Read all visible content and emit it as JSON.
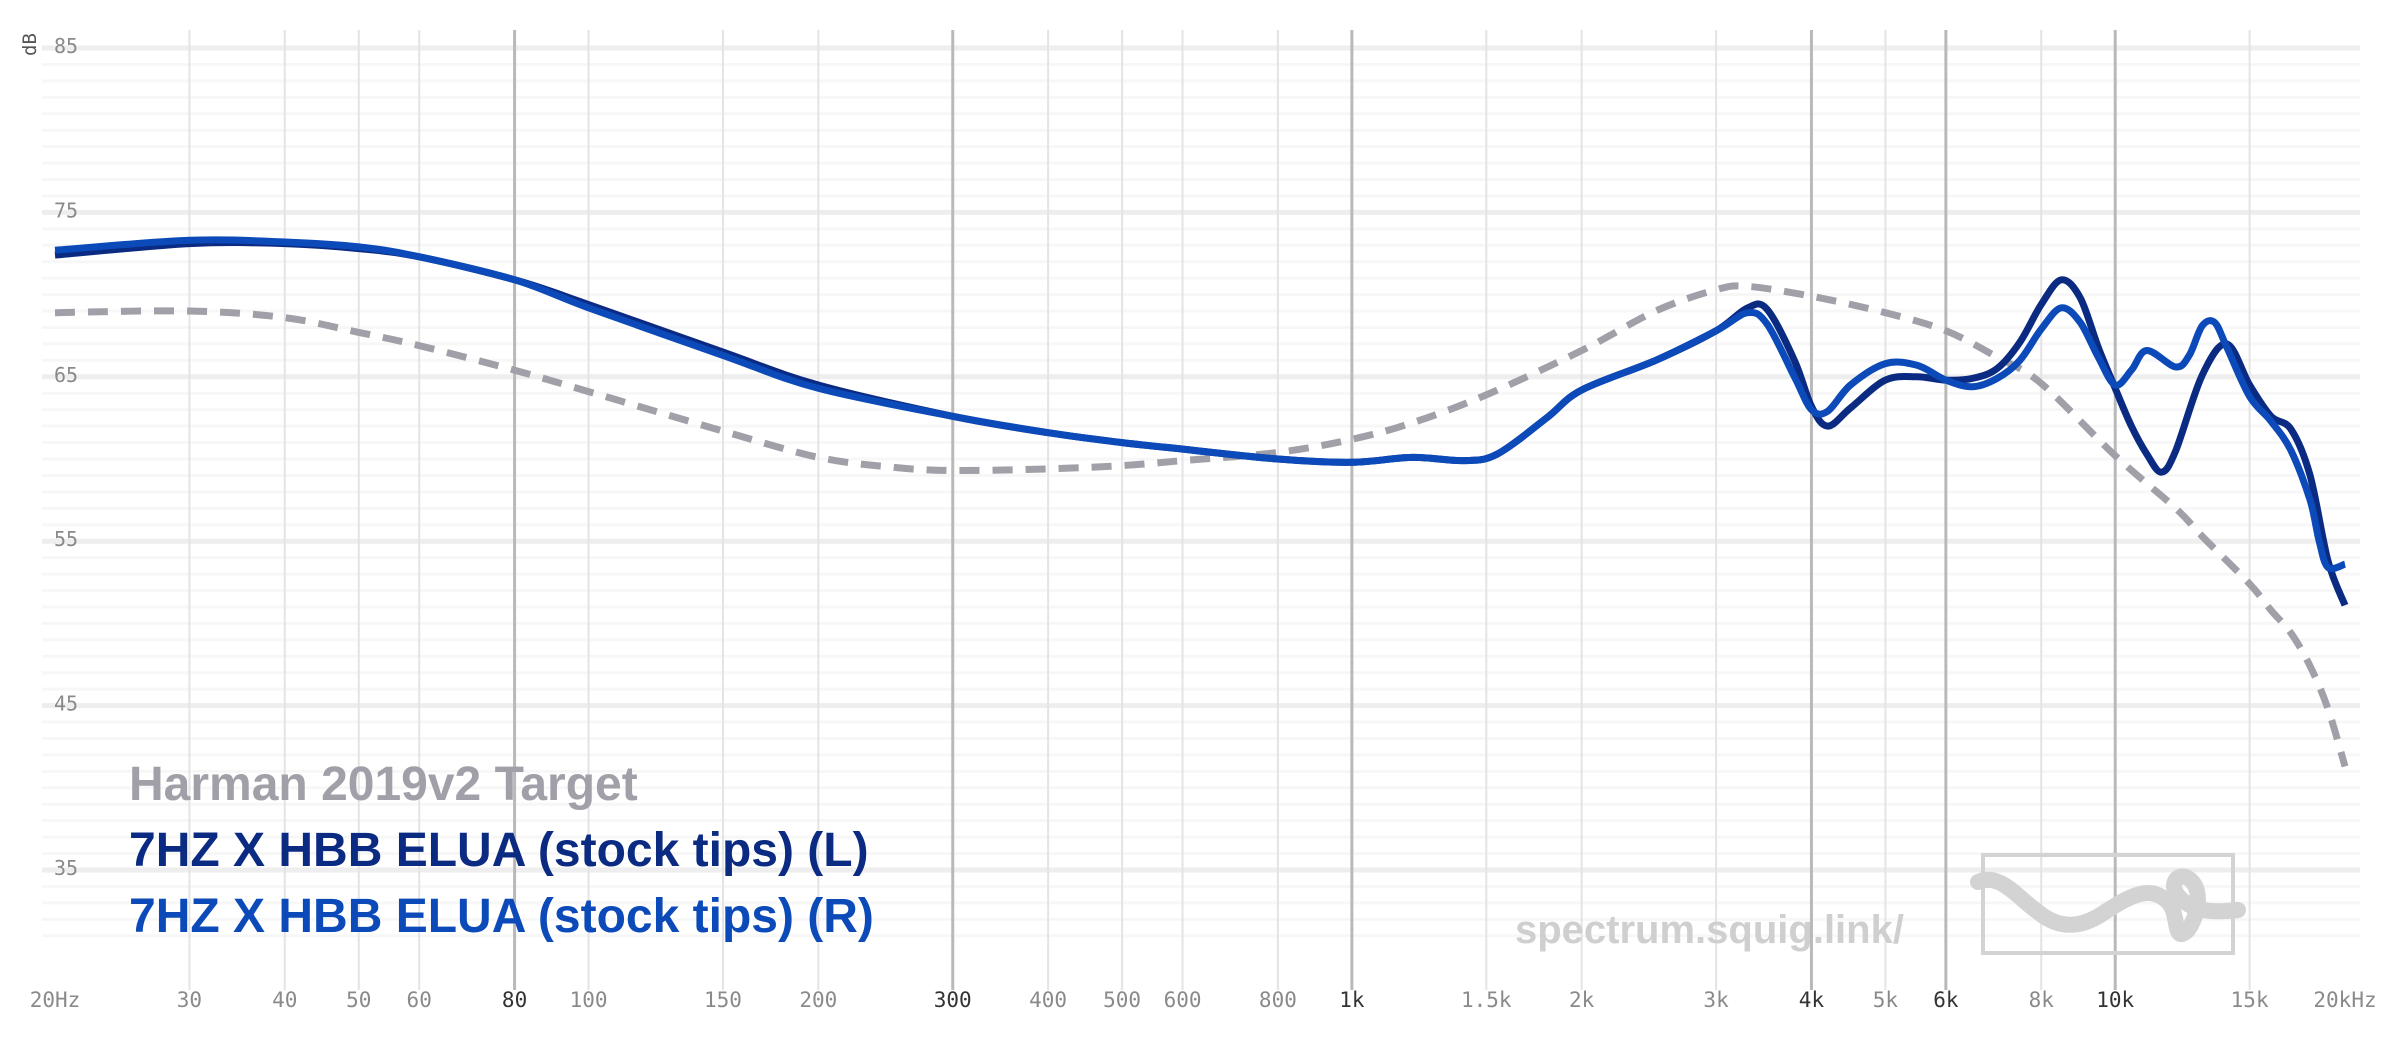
{
  "chart_data": {
    "type": "line",
    "xscale": "log",
    "xlim": [
      20,
      20000
    ],
    "ylim": [
      30,
      86
    ],
    "ylabel": "dB",
    "grid": true,
    "legend_position": "bottom-left",
    "x_ticks": [
      {
        "value": 20,
        "label": "20Hz",
        "major": false
      },
      {
        "value": 30,
        "label": "30",
        "major": false
      },
      {
        "value": 40,
        "label": "40",
        "major": false
      },
      {
        "value": 50,
        "label": "50",
        "major": false
      },
      {
        "value": 60,
        "label": "60",
        "major": false
      },
      {
        "value": 80,
        "label": "80",
        "major": true
      },
      {
        "value": 100,
        "label": "100",
        "major": false
      },
      {
        "value": 150,
        "label": "150",
        "major": false
      },
      {
        "value": 200,
        "label": "200",
        "major": false
      },
      {
        "value": 300,
        "label": "300",
        "major": true
      },
      {
        "value": 400,
        "label": "400",
        "major": false
      },
      {
        "value": 500,
        "label": "500",
        "major": false
      },
      {
        "value": 600,
        "label": "600",
        "major": false
      },
      {
        "value": 800,
        "label": "800",
        "major": false
      },
      {
        "value": 1000,
        "label": "1k",
        "major": true
      },
      {
        "value": 1500,
        "label": "1.5k",
        "major": false
      },
      {
        "value": 2000,
        "label": "2k",
        "major": false
      },
      {
        "value": 3000,
        "label": "3k",
        "major": false
      },
      {
        "value": 4000,
        "label": "4k",
        "major": true
      },
      {
        "value": 5000,
        "label": "5k",
        "major": false
      },
      {
        "value": 6000,
        "label": "6k",
        "major": true
      },
      {
        "value": 8000,
        "label": "8k",
        "major": false
      },
      {
        "value": 10000,
        "label": "10k",
        "major": true
      },
      {
        "value": 15000,
        "label": "15k",
        "major": false
      },
      {
        "value": 20000,
        "label": "20kHz",
        "major": false
      }
    ],
    "y_ticks": [
      {
        "value": 85,
        "label": "85"
      },
      {
        "value": 75,
        "label": "75"
      },
      {
        "value": 65,
        "label": "65"
      },
      {
        "value": 55,
        "label": "55"
      },
      {
        "value": 45,
        "label": "45"
      },
      {
        "value": 35,
        "label": "35"
      }
    ],
    "series": [
      {
        "name": "Harman 2019v2 Target",
        "color": "#a1a0a8",
        "dashed": true,
        "points": [
          [
            20,
            68.9
          ],
          [
            30,
            69.0
          ],
          [
            40,
            68.6
          ],
          [
            50,
            67.7
          ],
          [
            60,
            66.9
          ],
          [
            80,
            65.4
          ],
          [
            100,
            64.1
          ],
          [
            150,
            61.7
          ],
          [
            200,
            60.1
          ],
          [
            250,
            59.5
          ],
          [
            300,
            59.3
          ],
          [
            400,
            59.4
          ],
          [
            500,
            59.6
          ],
          [
            600,
            59.9
          ],
          [
            800,
            60.4
          ],
          [
            1000,
            61.2
          ],
          [
            1200,
            62.2
          ],
          [
            1500,
            63.9
          ],
          [
            2000,
            66.6
          ],
          [
            2500,
            69.0
          ],
          [
            3000,
            70.3
          ],
          [
            3300,
            70.5
          ],
          [
            4000,
            69.9
          ],
          [
            5000,
            68.9
          ],
          [
            6000,
            67.8
          ],
          [
            7000,
            66.2
          ],
          [
            8000,
            64.6
          ],
          [
            10000,
            60.2
          ],
          [
            12000,
            57.0
          ],
          [
            13000,
            55.3
          ],
          [
            15000,
            52.4
          ],
          [
            16000,
            50.8
          ],
          [
            17000,
            49.4
          ],
          [
            18000,
            47.4
          ],
          [
            19000,
            44.8
          ],
          [
            20000,
            41.3
          ]
        ]
      },
      {
        "name": "7HZ X HBB ELUA (stock tips) (L)",
        "color": "#0b2a82",
        "dashed": false,
        "points": [
          [
            20,
            72.4
          ],
          [
            30,
            73.1
          ],
          [
            40,
            73.1
          ],
          [
            50,
            72.8
          ],
          [
            60,
            72.3
          ],
          [
            80,
            70.9
          ],
          [
            100,
            69.4
          ],
          [
            150,
            66.5
          ],
          [
            200,
            64.5
          ],
          [
            300,
            62.6
          ],
          [
            400,
            61.6
          ],
          [
            500,
            61.0
          ],
          [
            600,
            60.6
          ],
          [
            800,
            60.0
          ],
          [
            1000,
            59.8
          ],
          [
            1200,
            60.1
          ],
          [
            1400,
            59.9
          ],
          [
            1550,
            60.3
          ],
          [
            1800,
            62.5
          ],
          [
            2000,
            64.2
          ],
          [
            2500,
            66.0
          ],
          [
            3000,
            67.8
          ],
          [
            3300,
            69.2
          ],
          [
            3500,
            69.1
          ],
          [
            3800,
            66.0
          ],
          [
            4000,
            63.2
          ],
          [
            4200,
            62.0
          ],
          [
            4500,
            63.1
          ],
          [
            5000,
            64.8
          ],
          [
            5500,
            65.0
          ],
          [
            6000,
            64.8
          ],
          [
            6500,
            64.9
          ],
          [
            7000,
            65.5
          ],
          [
            7500,
            67.1
          ],
          [
            8000,
            69.4
          ],
          [
            8500,
            70.9
          ],
          [
            9000,
            69.8
          ],
          [
            9500,
            66.8
          ],
          [
            10000,
            64.3
          ],
          [
            10500,
            62.0
          ],
          [
            11000,
            60.3
          ],
          [
            11500,
            59.2
          ],
          [
            12000,
            60.5
          ],
          [
            13000,
            65.1
          ],
          [
            14000,
            67.0
          ],
          [
            15000,
            64.5
          ],
          [
            16000,
            62.6
          ],
          [
            17000,
            61.8
          ],
          [
            18000,
            59.0
          ],
          [
            19000,
            53.8
          ],
          [
            20000,
            51.1
          ]
        ]
      },
      {
        "name": "7HZ X HBB ELUA (stock tips) (R)",
        "color": "#0b4ab8",
        "dashed": false,
        "points": [
          [
            20,
            72.7
          ],
          [
            30,
            73.3
          ],
          [
            40,
            73.2
          ],
          [
            50,
            72.9
          ],
          [
            60,
            72.3
          ],
          [
            80,
            70.9
          ],
          [
            100,
            69.2
          ],
          [
            150,
            66.3
          ],
          [
            200,
            64.3
          ],
          [
            300,
            62.6
          ],
          [
            400,
            61.6
          ],
          [
            500,
            61.0
          ],
          [
            600,
            60.6
          ],
          [
            800,
            60.0
          ],
          [
            1000,
            59.8
          ],
          [
            1200,
            60.1
          ],
          [
            1400,
            59.9
          ],
          [
            1550,
            60.3
          ],
          [
            1800,
            62.5
          ],
          [
            2000,
            64.2
          ],
          [
            2500,
            66.0
          ],
          [
            3000,
            67.8
          ],
          [
            3300,
            68.9
          ],
          [
            3500,
            68.2
          ],
          [
            3800,
            65.0
          ],
          [
            4000,
            63.0
          ],
          [
            4200,
            62.9
          ],
          [
            4500,
            64.5
          ],
          [
            5000,
            65.8
          ],
          [
            5500,
            65.7
          ],
          [
            6000,
            64.8
          ],
          [
            6500,
            64.4
          ],
          [
            7000,
            64.9
          ],
          [
            7500,
            66.0
          ],
          [
            8000,
            67.9
          ],
          [
            8500,
            69.2
          ],
          [
            9000,
            68.3
          ],
          [
            9500,
            66.2
          ],
          [
            10000,
            64.5
          ],
          [
            10500,
            65.4
          ],
          [
            11000,
            66.6
          ],
          [
            12000,
            65.6
          ],
          [
            12500,
            66.3
          ],
          [
            13000,
            68.1
          ],
          [
            13500,
            68.3
          ],
          [
            14000,
            66.8
          ],
          [
            15000,
            63.8
          ],
          [
            16000,
            62.3
          ],
          [
            17000,
            60.5
          ],
          [
            18000,
            57.5
          ],
          [
            18500,
            55.0
          ],
          [
            19000,
            53.4
          ],
          [
            20000,
            53.6
          ]
        ]
      }
    ]
  },
  "watermark": {
    "text": "spectrum.squig.link/",
    "logo": "squiggle-logo"
  }
}
